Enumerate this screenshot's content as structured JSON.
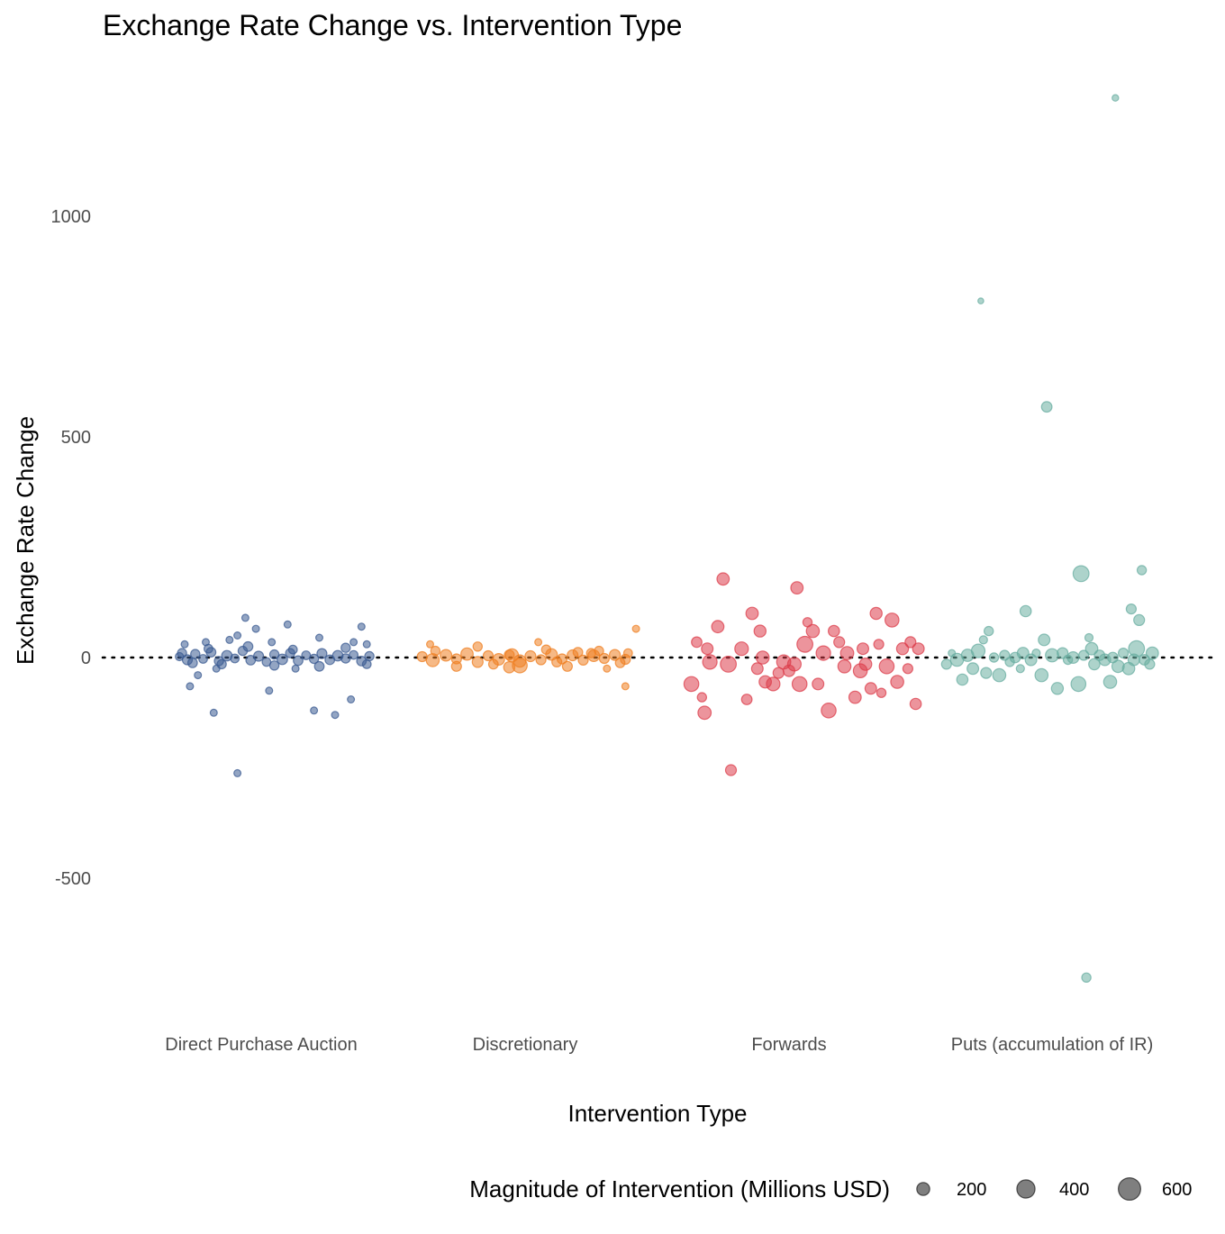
{
  "chart_data": {
    "type": "scatter",
    "title": "Exchange Rate Change vs. Intervention Type",
    "xlabel": "Intervention Type",
    "ylabel": "Exchange Rate Change",
    "categories": [
      "Direct Purchase Auction",
      "Discretionary",
      "Forwards",
      "Puts (accumulation of IR)"
    ],
    "ylim": [
      -810,
      1290
    ],
    "yticks": [
      -500,
      0,
      500,
      1000
    ],
    "reference_line": {
      "y": 0,
      "style": "dotted"
    },
    "grid": false,
    "legend": {
      "title": "Magnitude of Intervention (Millions USD)",
      "position": "bottom",
      "sizes": [
        200,
        400,
        600
      ],
      "labels": [
        "200",
        "400",
        "600"
      ]
    },
    "colors": {
      "Direct Purchase Auction": "#3b5b92",
      "Discretionary": "#ef7f22",
      "Forwards": "#dc3d4b",
      "Puts (accumulation of IR)": "#6aaea1"
    },
    "series": [
      {
        "name": "Direct Purchase Auction",
        "points": [
          [
            -0.31,
            2,
            80
          ],
          [
            -0.28,
            -5,
            120
          ],
          [
            -0.25,
            8,
            100
          ],
          [
            -0.22,
            -3,
            90
          ],
          [
            -0.19,
            12,
            110
          ],
          [
            -0.16,
            -8,
            100
          ],
          [
            -0.13,
            4,
            130
          ],
          [
            -0.1,
            -2,
            90
          ],
          [
            -0.07,
            15,
            100
          ],
          [
            -0.04,
            -6,
            110
          ],
          [
            -0.01,
            3,
            120
          ],
          [
            0.02,
            -10,
            90
          ],
          [
            0.05,
            7,
            100
          ],
          [
            0.08,
            -4,
            130
          ],
          [
            0.11,
            10,
            100
          ],
          [
            0.14,
            -7,
            110
          ],
          [
            0.17,
            5,
            90
          ],
          [
            0.2,
            -3,
            100
          ],
          [
            0.23,
            9,
            120
          ],
          [
            0.26,
            -5,
            110
          ],
          [
            0.29,
            4,
            130
          ],
          [
            0.32,
            -2,
            100
          ],
          [
            0.35,
            6,
            90
          ],
          [
            0.38,
            -8,
            110
          ],
          [
            0.41,
            3,
            100
          ],
          [
            -0.3,
            10,
            100
          ],
          [
            -0.26,
            -12,
            110
          ],
          [
            -0.2,
            20,
            90
          ],
          [
            -0.15,
            -15,
            100
          ],
          [
            -0.05,
            25,
            110
          ],
          [
            0.05,
            -18,
            100
          ],
          [
            0.12,
            18,
            90
          ],
          [
            0.22,
            -20,
            110
          ],
          [
            0.32,
            22,
            100
          ],
          [
            0.4,
            -15,
            90
          ],
          [
            -0.29,
            30,
            60
          ],
          [
            -0.24,
            -40,
            60
          ],
          [
            -0.21,
            35,
            60
          ],
          [
            -0.12,
            40,
            60
          ],
          [
            -0.09,
            50,
            60
          ],
          [
            -0.02,
            65,
            60
          ],
          [
            0.04,
            35,
            60
          ],
          [
            0.13,
            -25,
            60
          ],
          [
            0.22,
            45,
            60
          ],
          [
            0.35,
            35,
            60
          ],
          [
            0.4,
            30,
            60
          ],
          [
            -0.27,
            -65,
            60
          ],
          [
            -0.17,
            -25,
            60
          ],
          [
            0.1,
            75,
            60
          ],
          [
            0.38,
            70,
            60
          ],
          [
            -0.06,
            90,
            60
          ],
          [
            -0.18,
            -125,
            60
          ],
          [
            0.03,
            -75,
            60
          ],
          [
            0.2,
            -120,
            60
          ],
          [
            0.34,
            -95,
            60
          ],
          [
            0.28,
            -130,
            60
          ],
          [
            -0.09,
            -262,
            60
          ]
        ]
      },
      {
        "name": "Discretionary",
        "points": [
          [
            -0.39,
            2,
            120
          ],
          [
            -0.35,
            -6,
            200
          ],
          [
            -0.3,
            5,
            160
          ],
          [
            -0.26,
            -3,
            120
          ],
          [
            -0.22,
            8,
            180
          ],
          [
            -0.18,
            -10,
            140
          ],
          [
            -0.14,
            4,
            120
          ],
          [
            -0.1,
            -4,
            160
          ],
          [
            -0.06,
            6,
            120
          ],
          [
            -0.02,
            -8,
            180
          ],
          [
            0.02,
            3,
            140
          ],
          [
            0.06,
            -5,
            120
          ],
          [
            0.1,
            7,
            160
          ],
          [
            0.14,
            -3,
            120
          ],
          [
            0.18,
            5,
            140
          ],
          [
            0.22,
            -6,
            120
          ],
          [
            0.26,
            4,
            160
          ],
          [
            0.3,
            -2,
            120
          ],
          [
            0.34,
            6,
            140
          ],
          [
            0.38,
            -4,
            120
          ],
          [
            -0.34,
            15,
            100
          ],
          [
            -0.26,
            -20,
            120
          ],
          [
            -0.18,
            25,
            100
          ],
          [
            -0.06,
            -22,
            150
          ],
          [
            -0.02,
            -18,
            260
          ],
          [
            0.08,
            18,
            100
          ],
          [
            0.16,
            -20,
            120
          ],
          [
            0.28,
            15,
            100
          ],
          [
            0.36,
            -12,
            110
          ],
          [
            0.39,
            10,
            90
          ],
          [
            -0.36,
            30,
            60
          ],
          [
            0.05,
            35,
            60
          ],
          [
            0.42,
            65,
            60
          ],
          [
            0.38,
            -65,
            60
          ],
          [
            0.31,
            -25,
            60
          ],
          [
            0.12,
            -10,
            120
          ],
          [
            -0.05,
            5,
            200
          ],
          [
            0.2,
            12,
            110
          ],
          [
            -0.12,
            -15,
            110
          ],
          [
            0.25,
            10,
            100
          ]
        ]
      },
      {
        "name": "Forwards",
        "points": [
          [
            -0.37,
            -60,
            260
          ],
          [
            -0.35,
            35,
            130
          ],
          [
            -0.33,
            -90,
            100
          ],
          [
            -0.32,
            -125,
            210
          ],
          [
            -0.31,
            20,
            160
          ],
          [
            -0.3,
            -10,
            250
          ],
          [
            -0.27,
            70,
            180
          ],
          [
            -0.25,
            178,
            180
          ],
          [
            -0.23,
            -15,
            300
          ],
          [
            -0.22,
            -255,
            140
          ],
          [
            -0.18,
            20,
            220
          ],
          [
            -0.16,
            -95,
            130
          ],
          [
            -0.14,
            100,
            180
          ],
          [
            -0.12,
            -25,
            160
          ],
          [
            -0.11,
            60,
            170
          ],
          [
            -0.1,
            0,
            200
          ],
          [
            -0.09,
            -55,
            180
          ],
          [
            -0.06,
            -60,
            220
          ],
          [
            -0.04,
            -35,
            140
          ],
          [
            -0.02,
            -10,
            240
          ],
          [
            0.0,
            -30,
            160
          ],
          [
            0.02,
            -15,
            220
          ],
          [
            0.03,
            158,
            180
          ],
          [
            0.04,
            -60,
            260
          ],
          [
            0.06,
            30,
            300
          ],
          [
            0.07,
            80,
            100
          ],
          [
            0.09,
            60,
            200
          ],
          [
            0.11,
            -60,
            160
          ],
          [
            0.13,
            10,
            250
          ],
          [
            0.15,
            -120,
            260
          ],
          [
            0.17,
            60,
            150
          ],
          [
            0.19,
            35,
            140
          ],
          [
            0.21,
            -20,
            200
          ],
          [
            0.22,
            10,
            210
          ],
          [
            0.25,
            -90,
            180
          ],
          [
            0.27,
            -30,
            230
          ],
          [
            0.28,
            20,
            160
          ],
          [
            0.29,
            -15,
            180
          ],
          [
            0.31,
            -70,
            160
          ],
          [
            0.33,
            100,
            170
          ],
          [
            0.34,
            30,
            120
          ],
          [
            0.35,
            -80,
            100
          ],
          [
            0.37,
            -20,
            260
          ],
          [
            0.39,
            85,
            230
          ],
          [
            0.41,
            -55,
            200
          ],
          [
            0.43,
            20,
            170
          ],
          [
            0.45,
            -25,
            120
          ],
          [
            0.46,
            35,
            140
          ],
          [
            0.48,
            -105,
            150
          ],
          [
            0.49,
            20,
            160
          ]
        ]
      },
      {
        "name": "Puts (accumulation of IR)",
        "points": [
          [
            -0.4,
            -15,
            120
          ],
          [
            -0.38,
            10,
            60
          ],
          [
            -0.36,
            -5,
            200
          ],
          [
            -0.34,
            -50,
            150
          ],
          [
            -0.32,
            5,
            180
          ],
          [
            -0.3,
            -25,
            160
          ],
          [
            -0.28,
            15,
            220
          ],
          [
            -0.27,
            808,
            40
          ],
          [
            -0.26,
            40,
            80
          ],
          [
            -0.25,
            -35,
            140
          ],
          [
            -0.24,
            60,
            100
          ],
          [
            -0.22,
            0,
            100
          ],
          [
            -0.2,
            -40,
            200
          ],
          [
            -0.18,
            5,
            120
          ],
          [
            -0.16,
            -10,
            100
          ],
          [
            -0.14,
            0,
            130
          ],
          [
            -0.12,
            -25,
            80
          ],
          [
            -0.11,
            10,
            160
          ],
          [
            -0.1,
            105,
            150
          ],
          [
            -0.08,
            -5,
            160
          ],
          [
            -0.06,
            10,
            80
          ],
          [
            -0.04,
            -40,
            200
          ],
          [
            -0.03,
            40,
            160
          ],
          [
            -0.02,
            568,
            130
          ],
          [
            0.0,
            5,
            210
          ],
          [
            0.02,
            -70,
            170
          ],
          [
            0.04,
            10,
            140
          ],
          [
            0.06,
            -5,
            100
          ],
          [
            0.08,
            0,
            160
          ],
          [
            0.1,
            -60,
            260
          ],
          [
            0.11,
            190,
            300
          ],
          [
            0.12,
            5,
            120
          ],
          [
            0.13,
            -725,
            100
          ],
          [
            0.14,
            45,
            80
          ],
          [
            0.15,
            20,
            180
          ],
          [
            0.16,
            -15,
            150
          ],
          [
            0.18,
            5,
            130
          ],
          [
            0.2,
            -5,
            160
          ],
          [
            0.22,
            -55,
            200
          ],
          [
            0.23,
            0,
            130
          ],
          [
            0.24,
            1268,
            50
          ],
          [
            0.25,
            -20,
            180
          ],
          [
            0.27,
            10,
            120
          ],
          [
            0.29,
            -25,
            180
          ],
          [
            0.3,
            110,
            120
          ],
          [
            0.31,
            -5,
            160
          ],
          [
            0.32,
            20,
            300
          ],
          [
            0.33,
            85,
            140
          ],
          [
            0.34,
            198,
            100
          ],
          [
            0.35,
            -5,
            130
          ],
          [
            0.37,
            -15,
            120
          ],
          [
            0.38,
            10,
            180
          ]
        ]
      }
    ]
  }
}
